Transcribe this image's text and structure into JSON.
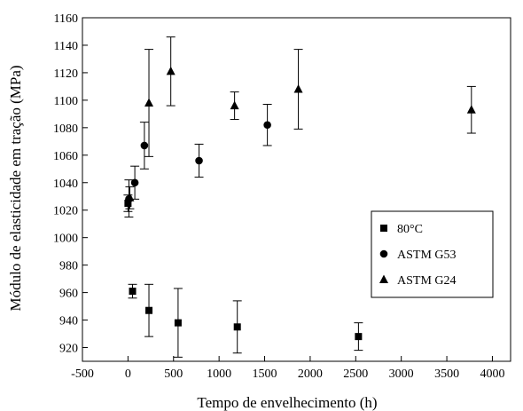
{
  "chart_data": {
    "type": "scatter",
    "xlabel": "Tempo de envelhecimento (h)",
    "ylabel": "Módulo de elasticidade em tração (MPa)",
    "xlim": [
      -500,
      4200
    ],
    "ylim": [
      910,
      1160
    ],
    "xticks": [
      -500,
      0,
      500,
      1000,
      1500,
      2000,
      2500,
      3000,
      3500,
      4000
    ],
    "yticks": [
      920,
      940,
      960,
      980,
      1000,
      1020,
      1040,
      1060,
      1080,
      1100,
      1120,
      1140,
      1160
    ],
    "grid": false,
    "legend_position": "lower-right",
    "series": [
      {
        "name": "80°C",
        "marker": "square",
        "points": [
          {
            "x": 0,
            "y": 1025,
            "err_low": 1019,
            "err_high": 1031
          },
          {
            "x": 50,
            "y": 961,
            "err_low": 956,
            "err_high": 966
          },
          {
            "x": 230,
            "y": 947,
            "err_low": 928,
            "err_high": 966
          },
          {
            "x": 550,
            "y": 938,
            "err_low": 913,
            "err_high": 963
          },
          {
            "x": 1200,
            "y": 935,
            "err_low": 916,
            "err_high": 954
          },
          {
            "x": 2530,
            "y": 928,
            "err_low": 918,
            "err_high": 938
          }
        ]
      },
      {
        "name": "ASTM G53",
        "marker": "circle",
        "points": [
          {
            "x": 10,
            "y": 1028,
            "err_low": 1015,
            "err_high": 1042
          },
          {
            "x": 75,
            "y": 1040,
            "err_low": 1028,
            "err_high": 1052
          },
          {
            "x": 180,
            "y": 1067,
            "err_low": 1050,
            "err_high": 1084
          },
          {
            "x": 780,
            "y": 1056,
            "err_low": 1044,
            "err_high": 1068
          },
          {
            "x": 1530,
            "y": 1082,
            "err_low": 1067,
            "err_high": 1097
          }
        ]
      },
      {
        "name": "ASTM G24",
        "marker": "triangle",
        "points": [
          {
            "x": 20,
            "y": 1029,
            "err_low": 1021,
            "err_high": 1037
          },
          {
            "x": 230,
            "y": 1098,
            "err_low": 1059,
            "err_high": 1137
          },
          {
            "x": 470,
            "y": 1121,
            "err_low": 1096,
            "err_high": 1146
          },
          {
            "x": 1170,
            "y": 1096,
            "err_low": 1086,
            "err_high": 1106
          },
          {
            "x": 1870,
            "y": 1108,
            "err_low": 1079,
            "err_high": 1137
          },
          {
            "x": 3770,
            "y": 1093,
            "err_low": 1076,
            "err_high": 1110
          }
        ]
      }
    ]
  }
}
